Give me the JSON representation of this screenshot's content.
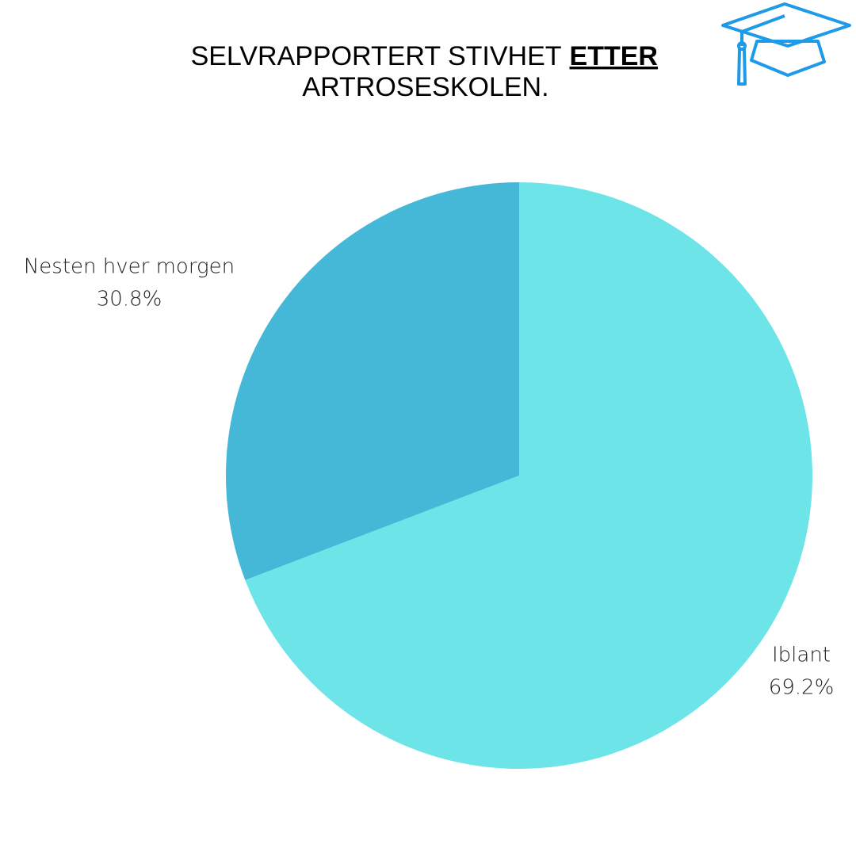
{
  "chart_data": {
    "type": "pie",
    "title": [
      "SELVRAPPORTERT STIVHET",
      "ETTER",
      "ARTROSESKOLEN."
    ],
    "categories": [
      "Iblant",
      "Nesten hver morgen"
    ],
    "values": [
      69.2,
      30.8
    ],
    "value_labels": [
      "69.2%",
      "30.8%"
    ],
    "colors": [
      "#6ce4e8",
      "#44b8d6"
    ],
    "start_angle": 0,
    "direction": "clockwise"
  }
}
